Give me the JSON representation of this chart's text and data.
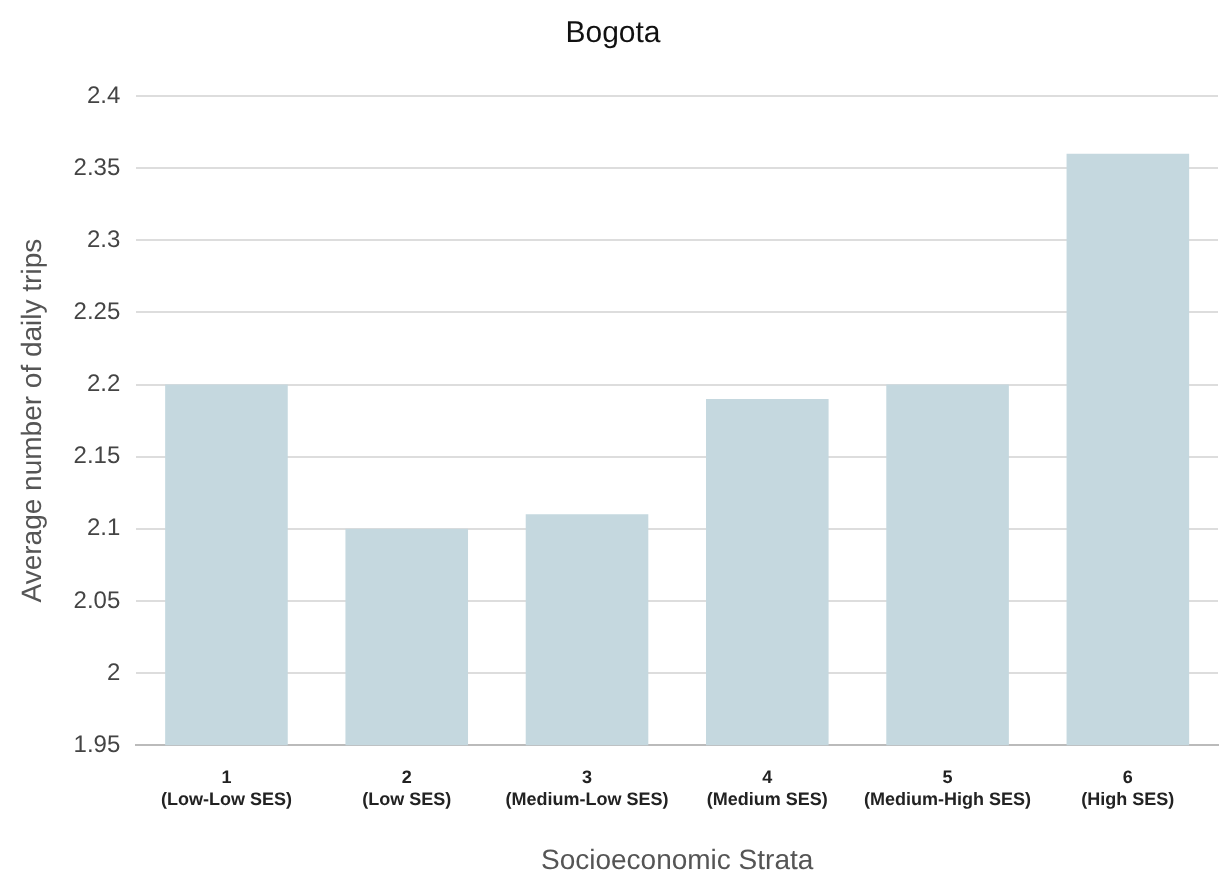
{
  "chart_data": {
    "type": "bar",
    "title": "Bogota",
    "xlabel": "Socioeconomic Strata",
    "ylabel": "Average number of daily trips",
    "categories": [
      "1\n(Low-Low SES)",
      "2\n(Low SES)",
      "3\n(Medium-Low SES)",
      "4\n(Medium SES)",
      "5\n(Medium-High SES)",
      "6\n(High SES)"
    ],
    "values": [
      2.2,
      2.1,
      2.11,
      2.19,
      2.2,
      2.36
    ],
    "color": "#c5d8df",
    "ylim": [
      1.95,
      2.4
    ],
    "yticks": [
      1.95,
      2,
      2.05,
      2.1,
      2.15,
      2.2,
      2.25,
      2.3,
      2.35,
      2.4
    ],
    "grid": "y"
  }
}
